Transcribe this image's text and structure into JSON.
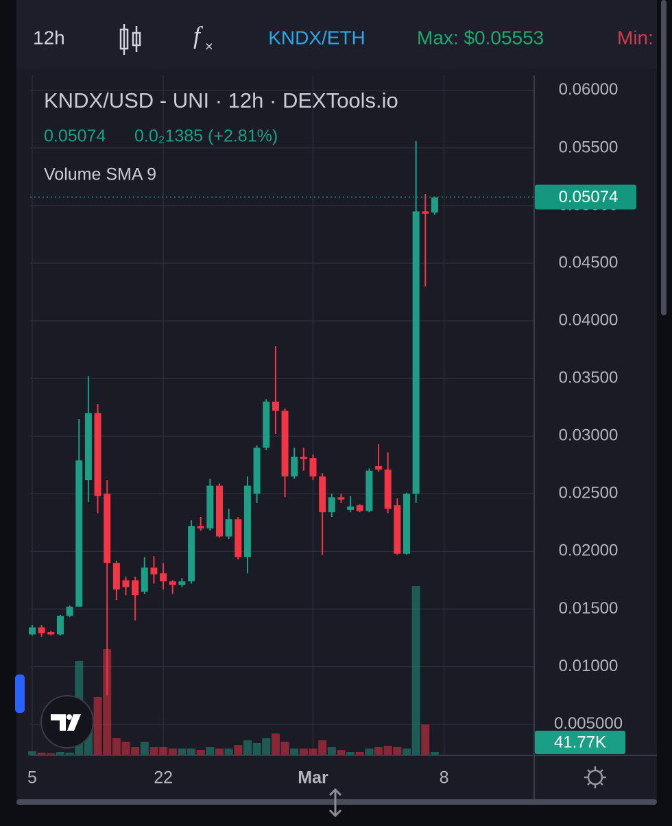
{
  "toolbar": {
    "interval": "12h",
    "pair": "KNDX/ETH",
    "max": "Max: $0.05553",
    "min": "Min:"
  },
  "chart_data": {
    "type": "candlestick",
    "title": "KNDX/USD - UNI · 12h · DEXTools.io",
    "change_text": "0.0₂1385 (+2.81%)",
    "indicator": "Volume SMA 9",
    "last_price": 0.05074,
    "volume_tag": {
      "value": 41770,
      "label": "41.77K"
    },
    "categories": [
      "5",
      null,
      null,
      null,
      null,
      null,
      null,
      null,
      null,
      null,
      null,
      null,
      null,
      null,
      "22",
      null,
      null,
      null,
      null,
      null,
      null,
      null,
      null,
      null,
      null,
      null,
      null,
      null,
      null,
      null,
      "Mar",
      null,
      null,
      null,
      null,
      null,
      null,
      null,
      null,
      null,
      null,
      null,
      null,
      null,
      "8"
    ],
    "open": [
      0.0128,
      0.0134,
      0.013,
      0.0128,
      0.0144,
      0.0152,
      0.0262,
      0.032,
      0.025,
      0.019,
      0.0175,
      0.0175,
      0.0165,
      0.0186,
      0.0181,
      0.0174,
      0.0171,
      0.0174,
      0.0222,
      0.022,
      0.0257,
      0.0213,
      0.0228,
      0.0195,
      0.025,
      0.029,
      0.033,
      0.0322,
      0.0265,
      0.0282,
      0.0281,
      0.0265,
      0.0234,
      0.0247,
      0.0236,
      0.024,
      0.0235,
      0.0274,
      0.0271,
      0.024,
      0.0198,
      0.025,
      0.0495,
      0.0494,
      null
    ],
    "high": [
      0.0136,
      0.0136,
      0.0131,
      0.0145,
      0.0153,
      0.0315,
      0.0352,
      0.0328,
      0.0262,
      0.0192,
      0.0178,
      0.0178,
      0.0195,
      0.0196,
      0.019,
      0.0175,
      0.0177,
      0.0227,
      0.023,
      0.0263,
      0.0259,
      0.0237,
      0.023,
      0.0265,
      0.0292,
      0.0332,
      0.0378,
      0.0324,
      0.029,
      0.029,
      0.0284,
      0.0268,
      0.025,
      0.025,
      0.0248,
      0.0241,
      0.0272,
      0.0293,
      0.0286,
      0.0246,
      0.0251,
      0.0556,
      0.051,
      0.0508,
      null
    ],
    "low": [
      0.0127,
      0.0126,
      0.0127,
      0.0127,
      0.0143,
      0.0152,
      0.0243,
      0.0233,
      0.0075,
      0.0158,
      0.0162,
      0.014,
      0.0163,
      0.0172,
      0.0167,
      0.0163,
      0.0169,
      0.0172,
      0.0218,
      0.0218,
      0.0212,
      0.0211,
      0.0193,
      0.0181,
      0.0242,
      0.0288,
      0.0302,
      0.0247,
      0.0263,
      0.027,
      0.0262,
      0.0197,
      0.023,
      0.0242,
      0.0234,
      0.0234,
      0.0234,
      0.0269,
      0.0233,
      0.0197,
      0.0197,
      0.0242,
      0.043,
      0.0492,
      null
    ],
    "close": [
      0.0134,
      0.0129,
      0.0128,
      0.0144,
      0.0152,
      0.0279,
      0.032,
      0.0248,
      0.019,
      0.0167,
      0.0169,
      0.0162,
      0.0186,
      0.018,
      0.0174,
      0.0171,
      0.0174,
      0.0222,
      0.022,
      0.0257,
      0.0213,
      0.0228,
      0.0195,
      0.0257,
      0.029,
      0.033,
      0.0322,
      0.0265,
      0.0282,
      0.028,
      0.0265,
      0.0234,
      0.0247,
      0.0245,
      0.0239,
      0.0235,
      0.027,
      0.0271,
      0.0237,
      0.0198,
      0.025,
      0.0495,
      0.0493,
      0.0507,
      null
    ],
    "volume": [
      13200,
      8800,
      6600,
      11000,
      8800,
      303600,
      110000,
      187000,
      341000,
      55000,
      44000,
      26400,
      44000,
      26400,
      26400,
      22000,
      22000,
      22000,
      17600,
      26400,
      22000,
      22000,
      33000,
      48400,
      39600,
      55000,
      70400,
      44000,
      22000,
      22000,
      22000,
      48400,
      26400,
      17600,
      11000,
      11000,
      22000,
      26400,
      30800,
      26400,
      22000,
      543400,
      99000,
      11000,
      null
    ],
    "volume_lim": [
      0,
      550000
    ],
    "up_color": "#1f9e86",
    "down_color": "#f23645",
    "ylim": [
      0.0613,
      0.0023
    ],
    "yticks": [
      {
        "value": 0.06,
        "label": "0.06000"
      },
      {
        "value": 0.055,
        "label": "0.05500"
      },
      {
        "value": 0.05,
        "label": "0.05000"
      },
      {
        "value": 0.045,
        "label": "0.04500"
      },
      {
        "value": 0.04,
        "label": "0.04000"
      },
      {
        "value": 0.035,
        "label": "0.03500"
      },
      {
        "value": 0.03,
        "label": "0.03000"
      },
      {
        "value": 0.025,
        "label": "0.02500"
      },
      {
        "value": 0.02,
        "label": "0.02000"
      },
      {
        "value": 0.015,
        "label": "0.01500"
      },
      {
        "value": 0.01,
        "label": "0.01000"
      },
      {
        "value": 0.005,
        "label": "0.005000"
      }
    ],
    "grid": true
  }
}
